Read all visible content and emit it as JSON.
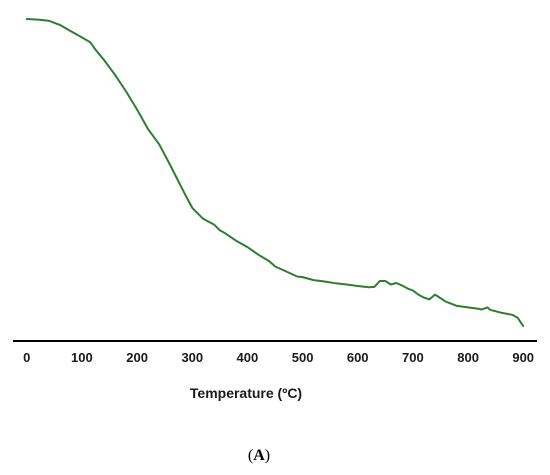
{
  "chart_data": {
    "type": "line",
    "title": "",
    "xlabel": "Temperature (ºC)",
    "ylabel": "",
    "xlim": [
      -25,
      925
    ],
    "ylim": [
      0,
      100
    ],
    "x_ticks": [
      "0",
      "100",
      "200",
      "300",
      "400",
      "500",
      "600",
      "700",
      "800",
      "900"
    ],
    "grid": false,
    "legend": "none",
    "line_color": "#2e7d32",
    "series": [
      {
        "x": [
          0,
          20,
          40,
          60,
          80,
          100,
          115,
          125,
          140,
          160,
          180,
          200,
          220,
          240,
          260,
          280,
          290,
          300,
          320,
          340,
          350,
          360,
          380,
          400,
          420,
          440,
          450,
          470,
          490,
          500,
          520,
          540,
          560,
          580,
          600,
          620,
          630,
          640,
          650,
          660,
          670,
          680,
          690,
          700,
          710,
          720,
          730,
          740,
          760,
          780,
          800,
          820,
          825,
          835,
          840,
          860,
          880,
          890,
          900
        ],
        "y": [
          100,
          99.8,
          99.4,
          98,
          95.9,
          93.8,
          92.2,
          89.6,
          86.2,
          81.2,
          75.6,
          69.5,
          62.9,
          57.8,
          50.8,
          43.5,
          39.9,
          36.4,
          32.7,
          30.7,
          28.9,
          27.8,
          25.3,
          23.2,
          20.6,
          18.4,
          16.7,
          15,
          13.3,
          13.1,
          12.1,
          11.6,
          11,
          10.6,
          10.1,
          9.7,
          9.8,
          11.8,
          11.8,
          10.6,
          11.1,
          10.3,
          9.3,
          8.6,
          7.2,
          6.2,
          5.6,
          7.2,
          4.8,
          3.4,
          2.9,
          2.4,
          2.2,
          2.9,
          2.1,
          1.1,
          0.4,
          -0.6,
          -3.4
        ]
      }
    ]
  },
  "caption": {
    "open": "(",
    "letter": "A",
    "close": ")"
  }
}
